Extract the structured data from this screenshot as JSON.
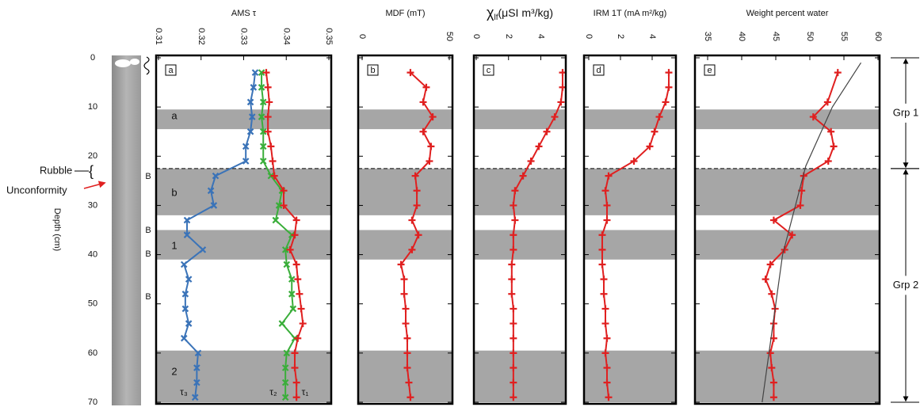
{
  "chart_data": [
    {
      "type": "line",
      "panel_label": "a",
      "title": "AMS τ",
      "xlim": [
        0.31,
        0.35
      ],
      "xticks": [
        0.31,
        0.32,
        0.33,
        0.34,
        0.35
      ],
      "ylim": [
        0,
        70
      ],
      "yticks": [
        0,
        10,
        20,
        30,
        40,
        50,
        60,
        70
      ],
      "ylabel": "Depth (cm)",
      "depth": [
        3,
        6,
        9,
        12,
        15,
        18,
        21,
        24,
        27,
        30,
        33,
        36,
        39,
        42,
        45,
        48,
        51,
        54,
        57,
        60,
        63,
        66,
        69
      ],
      "shaded_depths": [
        [
          10.5,
          14.5
        ],
        [
          22.5,
          32
        ],
        [
          35,
          41
        ],
        [
          59.5,
          70
        ]
      ],
      "unconformity_depth": 22.5,
      "zone_labels": [
        "a",
        "b",
        "1",
        "2"
      ],
      "bioturbation_labels": [
        "B",
        "B",
        "B",
        "B",
        "B"
      ],
      "core_annotations": [
        "Rubble",
        "Unconformity"
      ],
      "series": [
        {
          "name": "τ₃",
          "color": "#3a73b8",
          "marker": "x",
          "values": [
            0.3327,
            0.3323,
            0.3316,
            0.332,
            0.3316,
            0.3305,
            0.3305,
            0.3234,
            0.3223,
            0.323,
            0.3167,
            0.3167,
            0.3204,
            0.316,
            0.3171,
            0.3163,
            0.3163,
            0.3171,
            0.316,
            0.3193,
            0.319,
            0.319,
            0.3186
          ]
        },
        {
          "name": "τ₂",
          "color": "#3aae3a",
          "marker": "x",
          "values": [
            0.3342,
            0.3342,
            0.3346,
            0.3342,
            0.3346,
            0.3346,
            0.3346,
            0.3364,
            0.339,
            0.3383,
            0.3375,
            0.3413,
            0.3398,
            0.3401,
            0.3413,
            0.3413,
            0.3416,
            0.339,
            0.342,
            0.3401,
            0.3398,
            0.3398,
            0.3398
          ]
        },
        {
          "name": "τ₁",
          "color": "#e02020",
          "marker": "+",
          "values": [
            0.3353,
            0.3357,
            0.336,
            0.3357,
            0.3357,
            0.3364,
            0.3368,
            0.3372,
            0.3394,
            0.3394,
            0.3424,
            0.342,
            0.3409,
            0.3424,
            0.3427,
            0.3431,
            0.3435,
            0.3439,
            0.3427,
            0.342,
            0.342,
            0.3424,
            0.3424
          ]
        }
      ]
    },
    {
      "type": "line",
      "panel_label": "b",
      "title": "MDF (mT)",
      "xlim": [
        0,
        50
      ],
      "xticks": [
        0,
        50
      ],
      "depth": [
        3,
        6,
        9,
        12,
        15,
        18,
        21,
        24,
        27,
        30,
        33,
        36,
        39,
        42,
        45,
        48,
        51,
        54,
        57,
        60,
        63,
        66,
        69
      ],
      "series": [
        {
          "color": "#e02020",
          "marker": "+",
          "values": [
            27.7,
            36.8,
            35,
            40.5,
            35,
            39.5,
            38.6,
            30.5,
            31.4,
            31.4,
            28.6,
            32.3,
            28.6,
            22.3,
            24.1,
            24.1,
            25,
            25,
            25.9,
            25.9,
            25.9,
            26.8,
            27.7
          ]
        }
      ]
    },
    {
      "type": "line",
      "panel_label": "c",
      "title_symbol": "χ",
      "title_subscript": "lf",
      "title_unit": "(μSI m³/kg)",
      "xlim": [
        0,
        5.4
      ],
      "xticks": [
        0,
        2,
        4
      ],
      "depth": [
        3,
        6,
        9,
        12,
        15,
        18,
        21,
        24,
        27,
        30,
        33,
        36,
        39,
        42,
        45,
        48,
        51,
        54,
        57,
        60,
        63,
        66,
        69
      ],
      "series": [
        {
          "color": "#e02020",
          "marker": "+",
          "values": [
            5.35,
            5.35,
            5.25,
            4.86,
            4.37,
            3.88,
            3.39,
            2.9,
            2.4,
            2.3,
            2.4,
            2.3,
            2.3,
            2.2,
            2.2,
            2.2,
            2.3,
            2.3,
            2.3,
            2.3,
            2.3,
            2.3,
            2.3
          ]
        }
      ]
    },
    {
      "type": "line",
      "panel_label": "d",
      "title": "IRM 1T (mA m²/kg)",
      "xlim": [
        0,
        5.4
      ],
      "xticks": [
        0,
        2,
        4
      ],
      "depth": [
        3,
        6,
        9,
        12,
        15,
        18,
        21,
        24,
        27,
        30,
        33,
        36,
        39,
        42,
        45,
        48,
        51,
        54,
        57,
        60,
        63,
        66,
        69
      ],
      "series": [
        {
          "color": "#e02020",
          "marker": "+",
          "values": [
            5.05,
            5.05,
            4.85,
            4.45,
            4.15,
            3.85,
            2.85,
            1.25,
            1.05,
            1.15,
            1.15,
            0.85,
            0.85,
            0.85,
            0.95,
            0.95,
            1.05,
            1.05,
            1.15,
            1.05,
            1.15,
            1.15,
            1.25
          ]
        }
      ]
    },
    {
      "type": "line",
      "panel_label": "e",
      "title": "Weight percent water",
      "xlim": [
        35,
        60
      ],
      "xticks": [
        35,
        40,
        45,
        50,
        55,
        60
      ],
      "series": [
        {
          "color": "#e02020",
          "marker": "+",
          "depth": [
            3,
            9,
            12,
            15,
            18,
            21,
            24,
            27,
            30,
            33,
            36,
            39,
            42,
            45,
            48,
            51,
            54,
            57,
            60,
            63,
            66,
            69
          ],
          "values": [
            54.1,
            52.6,
            50.5,
            53.1,
            53.5,
            52.7,
            49.1,
            48.8,
            48.6,
            44.7,
            47.4,
            46.3,
            44.2,
            43.5,
            44.4,
            44.9,
            44.7,
            44.7,
            44.2,
            44.4,
            44.7,
            44.7
          ]
        },
        {
          "color": "#444444",
          "marker": "none",
          "depth": [
            1,
            10,
            22,
            40,
            60,
            70
          ],
          "values": [
            57.5,
            53.3,
            49.4,
            46,
            44,
            43
          ]
        }
      ],
      "groups": [
        {
          "label": "Grp 1",
          "range": [
            0,
            22.5
          ]
        },
        {
          "label": "Grp 2",
          "range": [
            22.5,
            70
          ]
        }
      ]
    }
  ]
}
